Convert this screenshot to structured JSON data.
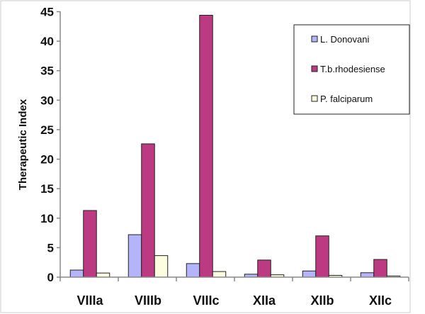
{
  "chart_data": {
    "type": "bar",
    "title": "",
    "xlabel": "",
    "ylabel": "Therapeutic Index",
    "ylim": [
      0,
      45
    ],
    "yticks": [
      "0",
      "5",
      "10",
      "15",
      "20",
      "25",
      "30",
      "35",
      "40",
      "45"
    ],
    "grid": false,
    "legend_position": "top-right",
    "categories": [
      "VIIIa",
      "VIIIb",
      "VIIIc",
      "XIIa",
      "XIIb",
      "XIIc"
    ],
    "series": [
      {
        "name": "L. Donovani",
        "color": "#b4b4fa",
        "values": [
          1.2,
          7.2,
          2.3,
          0.5,
          1.05,
          0.75
        ]
      },
      {
        "name": "T.b.rhodesiense",
        "color": "#bc3a82",
        "values": [
          11.3,
          22.6,
          44.4,
          2.9,
          7.0,
          3.0
        ]
      },
      {
        "name": "P. falciparum",
        "color": "#fdfde0",
        "values": [
          0.7,
          3.65,
          0.95,
          0.4,
          0.3,
          0.2
        ]
      }
    ]
  }
}
